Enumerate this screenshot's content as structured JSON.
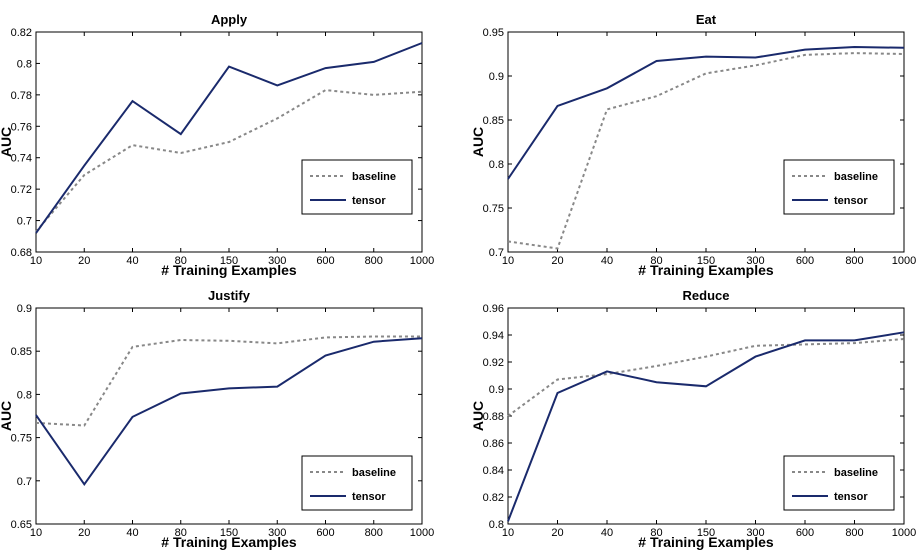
{
  "chart_data": [
    {
      "type": "line",
      "title": "Apply",
      "xlabel": "# Training Examples",
      "ylabel": "AUC",
      "categories": [
        "10",
        "20",
        "40",
        "80",
        "150",
        "300",
        "600",
        "800",
        "1000"
      ],
      "yticks": [
        "0.68",
        "0.7",
        "0.72",
        "0.74",
        "0.76",
        "0.78",
        "0.8",
        "0.82"
      ],
      "ylim": [
        0.68,
        0.82
      ],
      "legend_position": "right",
      "series": [
        {
          "name": "baseline",
          "style": "dotted",
          "color": "#888888",
          "values": [
            0.693,
            0.729,
            0.748,
            0.743,
            0.75,
            0.765,
            0.783,
            0.78,
            0.782
          ]
        },
        {
          "name": "tensor",
          "style": "solid",
          "color": "#1a2a6c",
          "values": [
            0.692,
            0.735,
            0.776,
            0.755,
            0.798,
            0.786,
            0.797,
            0.801,
            0.813
          ]
        }
      ]
    },
    {
      "type": "line",
      "title": "Eat",
      "xlabel": "# Training Examples",
      "ylabel": "AUC",
      "categories": [
        "10",
        "20",
        "40",
        "80",
        "150",
        "300",
        "600",
        "800",
        "1000"
      ],
      "yticks": [
        "0.7",
        "0.75",
        "0.8",
        "0.85",
        "0.9",
        "0.95"
      ],
      "ylim": [
        0.7,
        0.95
      ],
      "legend_position": "right",
      "series": [
        {
          "name": "baseline",
          "style": "dotted",
          "color": "#888888",
          "values": [
            0.712,
            0.704,
            0.862,
            0.877,
            0.903,
            0.912,
            0.924,
            0.926,
            0.925
          ]
        },
        {
          "name": "tensor",
          "style": "solid",
          "color": "#1a2a6c",
          "values": [
            0.783,
            0.866,
            0.886,
            0.917,
            0.922,
            0.921,
            0.93,
            0.933,
            0.932
          ]
        }
      ]
    },
    {
      "type": "line",
      "title": "Justify",
      "xlabel": "# Training Examples",
      "ylabel": "AUC",
      "categories": [
        "10",
        "20",
        "40",
        "80",
        "150",
        "300",
        "600",
        "800",
        "1000"
      ],
      "yticks": [
        "0.65",
        "0.7",
        "0.75",
        "0.8",
        "0.85",
        "0.9"
      ],
      "ylim": [
        0.65,
        0.9
      ],
      "legend_position": "lower-right",
      "series": [
        {
          "name": "baseline",
          "style": "dotted",
          "color": "#888888",
          "values": [
            0.767,
            0.764,
            0.855,
            0.863,
            0.862,
            0.859,
            0.866,
            0.867,
            0.867
          ]
        },
        {
          "name": "tensor",
          "style": "solid",
          "color": "#1a2a6c",
          "values": [
            0.776,
            0.696,
            0.774,
            0.801,
            0.807,
            0.809,
            0.845,
            0.861,
            0.865
          ]
        }
      ]
    },
    {
      "type": "line",
      "title": "Reduce",
      "xlabel": "# Training Examples",
      "ylabel": "AUC",
      "categories": [
        "10",
        "20",
        "40",
        "80",
        "150",
        "300",
        "600",
        "800",
        "1000"
      ],
      "yticks": [
        "0.8",
        "0.82",
        "0.84",
        "0.86",
        "0.88",
        "0.9",
        "0.92",
        "0.94",
        "0.96"
      ],
      "ylim": [
        0.8,
        0.96
      ],
      "legend_position": "lower-right",
      "series": [
        {
          "name": "baseline",
          "style": "dotted",
          "color": "#888888",
          "values": [
            0.88,
            0.907,
            0.911,
            0.917,
            0.924,
            0.932,
            0.933,
            0.934,
            0.937
          ]
        },
        {
          "name": "tensor",
          "style": "solid",
          "color": "#1a2a6c",
          "values": [
            0.802,
            0.897,
            0.913,
            0.905,
            0.902,
            0.924,
            0.936,
            0.936,
            0.942
          ]
        }
      ]
    }
  ]
}
